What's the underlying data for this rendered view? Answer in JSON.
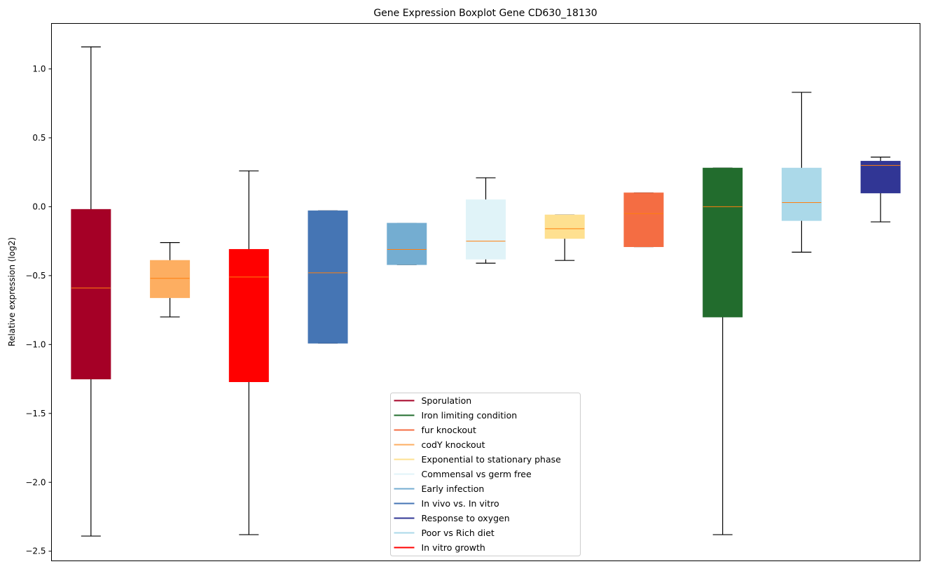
{
  "chart_data": {
    "type": "boxplot",
    "title": "Gene Expression Boxplot Gene CD630_18130",
    "xlabel": "",
    "ylabel": "Relative expression (log2)",
    "ylim": [
      -2.57,
      1.33
    ],
    "xlim": [
      0.5,
      11.5
    ],
    "yticks": [
      1.0,
      0.5,
      0.0,
      -0.5,
      -1.0,
      -1.5,
      -2.0,
      -2.5
    ],
    "ytick_labels": [
      "1.0",
      "0.5",
      "0.0",
      "−0.5",
      "−1.0",
      "−1.5",
      "−2.0",
      "−2.5"
    ],
    "grid": false,
    "legend_position": "bottom-center",
    "median_color": "#ff7f0e",
    "boxes": [
      {
        "name": "Sporulation",
        "color": "#a50026",
        "whislo": -2.39,
        "q1": -1.25,
        "med": -0.59,
        "q3": -0.02,
        "whishi": 1.16
      },
      {
        "name": "codY knockout",
        "color": "#fdae61",
        "whislo": -0.8,
        "q1": -0.66,
        "med": -0.52,
        "q3": -0.39,
        "whishi": -0.26
      },
      {
        "name": "In vitro growth",
        "color": "#ff0000",
        "whislo": -2.38,
        "q1": -1.27,
        "med": -0.51,
        "q3": -0.31,
        "whishi": 0.26
      },
      {
        "name": "In vivo vs. In vitro",
        "color": "#4575b4",
        "whislo": -0.99,
        "q1": -0.99,
        "med": -0.48,
        "q3": -0.03,
        "whishi": -0.03
      },
      {
        "name": "Early infection",
        "color": "#74add1",
        "whislo": -0.42,
        "q1": -0.42,
        "med": -0.31,
        "q3": -0.12,
        "whishi": -0.12
      },
      {
        "name": "Commensal vs germ free",
        "color": "#e0f3f8",
        "whislo": -0.41,
        "q1": -0.38,
        "med": -0.25,
        "q3": 0.05,
        "whishi": 0.21
      },
      {
        "name": "Exponential to stationary phase",
        "color": "#fee090",
        "whislo": -0.39,
        "q1": -0.23,
        "med": -0.16,
        "q3": -0.06,
        "whishi": -0.06
      },
      {
        "name": "fur knockout",
        "color": "#f46d43",
        "whislo": -0.29,
        "q1": -0.29,
        "med": -0.05,
        "q3": 0.1,
        "whishi": 0.1
      },
      {
        "name": "Iron limiting condition",
        "color": "#226c2d",
        "whislo": -2.38,
        "q1": -0.8,
        "med": 0.0,
        "q3": 0.28,
        "whishi": 0.28
      },
      {
        "name": "Poor vs Rich diet",
        "color": "#abd9e9",
        "whislo": -0.33,
        "q1": -0.1,
        "med": 0.03,
        "q3": 0.28,
        "whishi": 0.83
      },
      {
        "name": "Response to oxygen",
        "color": "#313695",
        "whislo": -0.11,
        "q1": 0.1,
        "med": 0.3,
        "q3": 0.33,
        "whishi": 0.36
      }
    ],
    "legend": [
      {
        "label": "Sporulation",
        "color": "#a50026"
      },
      {
        "label": "Iron limiting condition",
        "color": "#226c2d"
      },
      {
        "label": "fur knockout",
        "color": "#f46d43"
      },
      {
        "label": "codY knockout",
        "color": "#fdae61"
      },
      {
        "label": "Exponential to stationary phase",
        "color": "#fee090"
      },
      {
        "label": "Commensal vs germ free",
        "color": "#e0f3f8"
      },
      {
        "label": "Early infection",
        "color": "#74add1"
      },
      {
        "label": "In vivo vs. In vitro",
        "color": "#4575b4"
      },
      {
        "label": "Response to oxygen",
        "color": "#313695"
      },
      {
        "label": "Poor vs Rich diet",
        "color": "#abd9e9"
      },
      {
        "label": "In vitro growth",
        "color": "#ff0000"
      }
    ]
  }
}
